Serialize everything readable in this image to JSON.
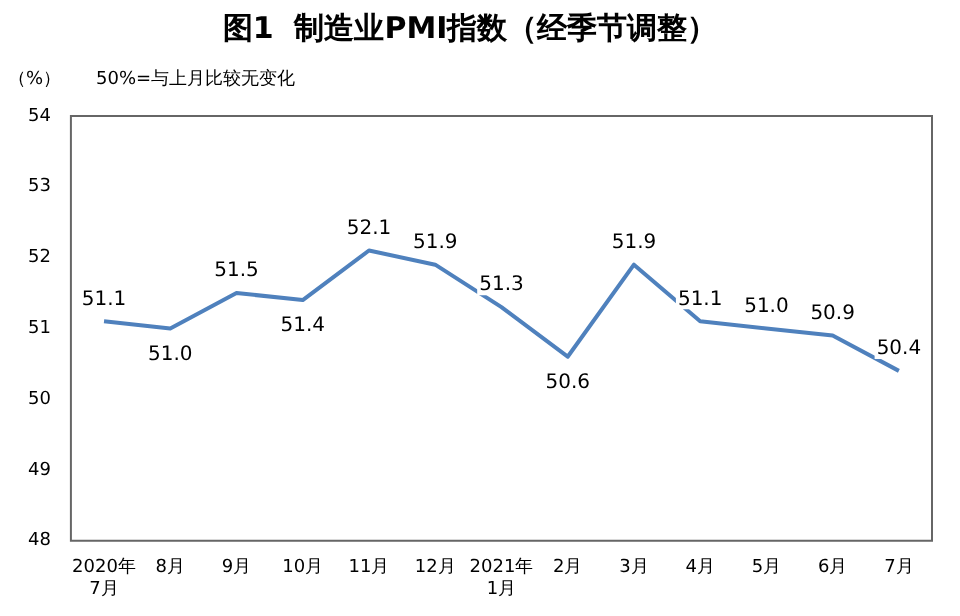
{
  "chart_data": {
    "type": "line",
    "title": "图1  制造业PMI指数（经季节调整）",
    "ylabel": "（%）",
    "annotations": [
      "50%=与上月比较无变化"
    ],
    "categories": [
      "2020年\n7月",
      "8月",
      "9月",
      "10月",
      "11月",
      "12月",
      "2021年\n1月",
      "2月",
      "3月",
      "4月",
      "5月",
      "6月",
      "7月"
    ],
    "series": [
      {
        "color": "#4f81bd",
        "values": [
          51.1,
          51.0,
          51.5,
          51.4,
          52.1,
          51.9,
          51.3,
          50.6,
          51.9,
          51.1,
          51.0,
          50.9,
          50.4
        ],
        "value_labels": [
          "51.1",
          "51.0",
          "51.5",
          "51.4",
          "52.1",
          "51.9",
          "51.3",
          "50.6",
          "51.9",
          "51.1",
          "51.0",
          "50.9",
          "50.4"
        ]
      }
    ],
    "ylim": [
      48,
      54
    ],
    "yticks": [
      48,
      49,
      50,
      51,
      52,
      53,
      54
    ],
    "grid": false,
    "legend": false,
    "marker": "none"
  }
}
